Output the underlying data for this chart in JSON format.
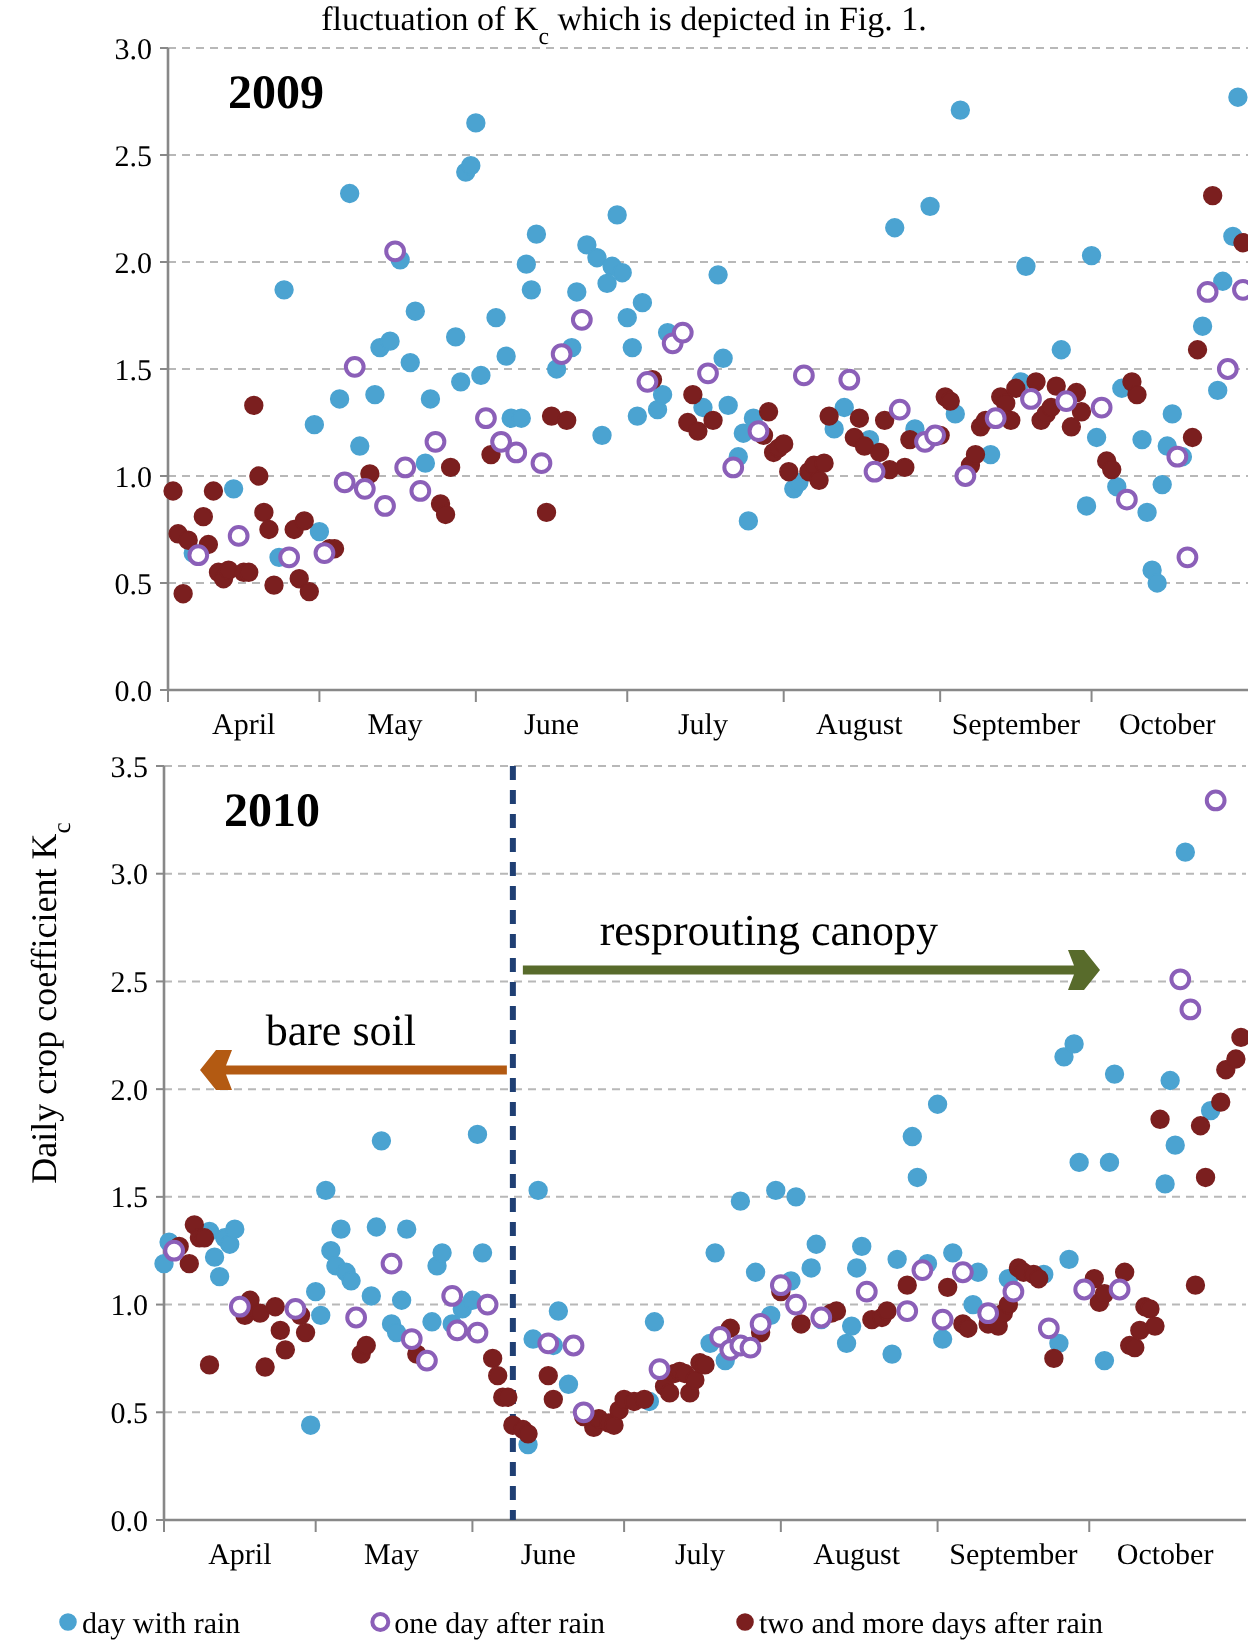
{
  "chart_data": [
    {
      "type": "scatter",
      "title": "2009",
      "annotations": [
        "fluctuation of K$_{c}$ which is depicted in Fig. 1."
      ],
      "xlim": [
        "--04-01",
        "--11-01"
      ],
      "xticks": [
        {
          "value": "--04-01",
          "label": null
        },
        {
          "value": "--04-16",
          "label": "April"
        },
        {
          "value": "--05-01",
          "label": null
        },
        {
          "value": "--05-16",
          "label": "May"
        },
        {
          "value": "--06-01",
          "label": null
        },
        {
          "value": "--06-16",
          "label": "June"
        },
        {
          "value": "--07-01",
          "label": null
        },
        {
          "value": "--07-16",
          "label": "July"
        },
        {
          "value": "--08-01",
          "label": null
        },
        {
          "value": "--08-16",
          "label": "August"
        },
        {
          "value": "--09-01",
          "label": null
        },
        {
          "value": "--09-16",
          "label": "September"
        },
        {
          "value": "--10-01",
          "label": null
        },
        {
          "value": "--10-16",
          "label": "October"
        }
      ],
      "ylim": [
        0,
        3
      ],
      "yticks": [
        {
          "value": 0,
          "label": "0.0"
        },
        {
          "value": 0.5,
          "label": "0.5"
        },
        {
          "value": 1,
          "label": "1.0"
        },
        {
          "value": 1.5,
          "label": "1.5"
        },
        {
          "value": 2,
          "label": "2.0"
        },
        {
          "value": 2.5,
          "label": "2.5"
        },
        {
          "value": 3,
          "label": "3.0"
        }
      ],
      "grid": "y",
      "marker": "circle",
      "series": [
        {
          "color": "#4ba3d1",
          "x": [
            "--04-06",
            "--04-14",
            "--04-23",
            "--04-24",
            "--04-30",
            "--05-01",
            "--05-05",
            "--05-07",
            "--05-09",
            "--05-12",
            "--05-13",
            "--05-15",
            "--05-17",
            "--05-19",
            "--05-20",
            "--05-22",
            "--05-23",
            "--05-28",
            "--05-29",
            "--05-30",
            "--05-31",
            "--06-01",
            "--06-02",
            "--06-05",
            "--06-07",
            "--06-08",
            "--06-10",
            "--06-11",
            "--06-12",
            "--06-13",
            "--06-17",
            "--06-20",
            "--06-21",
            "--06-23",
            "--06-25",
            "--06-26",
            "--06-27",
            "--06-28",
            "--06-29",
            "--06-30",
            "--07-01",
            "--07-02",
            "--07-03",
            "--07-04",
            "--07-07",
            "--07-08",
            "--07-09",
            "--07-16",
            "--07-19",
            "--07-20",
            "--07-21",
            "--07-23",
            "--07-24",
            "--07-25",
            "--07-26",
            "--08-03",
            "--08-04",
            "--08-11",
            "--08-13",
            "--08-18",
            "--08-23",
            "--08-27",
            "--08-30",
            "--09-04",
            "--09-05",
            "--09-11",
            "--09-17",
            "--09-18",
            "--09-25",
            "--09-30",
            "--10-01",
            "--10-02",
            "--10-06",
            "--10-07",
            "--10-11",
            "--10-12",
            "--10-13",
            "--10-14",
            "--10-15",
            "--10-16",
            "--10-17",
            "--10-19",
            "--10-23",
            "--10-26",
            "--10-27",
            "--10-29",
            "--10-30"
          ],
          "values": [
            0.64,
            0.94,
            0.62,
            1.87,
            1.24,
            0.74,
            1.36,
            2.32,
            1.14,
            1.38,
            1.6,
            1.63,
            2.01,
            1.53,
            1.77,
            1.06,
            1.36,
            1.65,
            1.44,
            2.42,
            2.45,
            2.65,
            1.47,
            1.74,
            1.56,
            1.27,
            1.27,
            1.99,
            1.87,
            2.13,
            1.5,
            1.6,
            1.86,
            2.08,
            2.02,
            1.19,
            1.9,
            1.98,
            2.22,
            1.95,
            1.74,
            1.6,
            1.28,
            1.81,
            1.31,
            1.38,
            1.67,
            1.32,
            1.94,
            1.55,
            1.33,
            1.09,
            1.2,
            0.79,
            1.27,
            0.94,
            0.97,
            1.22,
            1.32,
            1.17,
            2.16,
            1.22,
            2.26,
            1.29,
            2.71,
            1.1,
            1.44,
            1.98,
            1.59,
            0.86,
            2.03,
            1.18,
            0.95,
            1.41,
            1.17,
            0.83,
            0.56,
            0.5,
            0.96,
            1.14,
            1.29,
            1.09,
            1.7,
            1.4,
            1.91,
            2.12,
            2.77
          ]
        },
        {
          "color": "#8b5fb8",
          "x": [
            "--04-07",
            "--04-15",
            "--04-25",
            "--05-02",
            "--05-06",
            "--05-08",
            "--05-10",
            "--05-14",
            "--05-16",
            "--05-18",
            "--05-21",
            "--05-24",
            "--06-03",
            "--06-06",
            "--06-09",
            "--06-14",
            "--06-18",
            "--06-22",
            "--07-05",
            "--07-10",
            "--07-12",
            "--07-17",
            "--07-22",
            "--07-27",
            "--08-05",
            "--08-14",
            "--08-19",
            "--08-24",
            "--08-29",
            "--08-31",
            "--09-06",
            "--09-12",
            "--09-19",
            "--09-26",
            "--10-03",
            "--10-08",
            "--10-18",
            "--10-20",
            "--10-24",
            "--10-28",
            "--10-31"
          ],
          "values": [
            0.63,
            0.72,
            0.62,
            0.64,
            0.97,
            1.51,
            0.94,
            0.86,
            2.05,
            1.04,
            0.93,
            1.16,
            1.27,
            1.16,
            1.11,
            1.06,
            1.57,
            1.73,
            1.44,
            1.62,
            1.67,
            1.48,
            1.04,
            1.21,
            1.47,
            1.45,
            1.02,
            1.31,
            1.16,
            1.19,
            1.0,
            1.27,
            1.36,
            1.35,
            1.32,
            0.89,
            1.09,
            0.62,
            1.86,
            1.5,
            1.87
          ]
        },
        {
          "color": "#7b1f1f",
          "x": [
            "--04-02",
            "--04-03",
            "--04-04",
            "--04-05",
            "--04-08",
            "--04-09",
            "--04-10",
            "--04-11",
            "--04-12",
            "--04-13",
            "--04-16",
            "--04-17",
            "--04-18",
            "--04-19",
            "--04-20",
            "--04-21",
            "--04-22",
            "--04-26",
            "--04-27",
            "--04-28",
            "--04-29",
            "--05-03",
            "--05-04",
            "--05-11",
            "--05-25",
            "--05-26",
            "--05-27",
            "--06-04",
            "--06-15",
            "--06-16",
            "--06-19",
            "--07-06",
            "--07-13",
            "--07-14",
            "--07-15",
            "--07-18",
            "--07-28",
            "--07-29",
            "--07-30",
            "--07-31",
            "--08-01",
            "--08-02",
            "--08-06",
            "--08-07",
            "--08-08",
            "--08-09",
            "--08-10",
            "--08-15",
            "--08-16",
            "--08-17",
            "--08-20",
            "--08-21",
            "--08-22",
            "--08-25",
            "--08-26",
            "--09-01",
            "--09-02",
            "--09-03",
            "--09-07",
            "--09-08",
            "--09-09",
            "--09-10",
            "--09-13",
            "--09-14",
            "--09-15",
            "--09-16",
            "--09-20",
            "--09-21",
            "--09-22",
            "--09-23",
            "--09-24",
            "--09-27",
            "--09-28",
            "--09-29",
            "--10-04",
            "--10-05",
            "--10-09",
            "--10-10",
            "--10-21",
            "--10-22",
            "--10-25",
            "--10-31"
          ],
          "values": [
            0.93,
            0.73,
            0.45,
            0.7,
            0.81,
            0.68,
            0.93,
            0.55,
            0.52,
            0.56,
            0.55,
            0.55,
            1.33,
            1.0,
            0.83,
            0.75,
            0.49,
            0.75,
            0.52,
            0.79,
            0.46,
            0.66,
            0.66,
            1.01,
            0.87,
            0.82,
            1.04,
            1.1,
            0.83,
            1.28,
            1.26,
            1.45,
            1.25,
            1.38,
            1.21,
            1.26,
            1.19,
            1.3,
            1.11,
            1.13,
            1.15,
            1.02,
            1.02,
            1.05,
            0.98,
            1.06,
            1.28,
            1.18,
            1.27,
            1.14,
            1.11,
            1.26,
            1.03,
            1.04,
            1.17,
            1.19,
            1.37,
            1.35,
            1.05,
            1.1,
            1.23,
            1.26,
            1.37,
            1.34,
            1.26,
            1.41,
            1.44,
            1.26,
            1.29,
            1.32,
            1.42,
            1.23,
            1.39,
            1.3,
            1.07,
            1.03,
            1.44,
            1.38,
            1.18,
            1.59,
            2.31,
            2.09
          ]
        }
      ]
    },
    {
      "type": "scatter",
      "title": "2010",
      "ylabel": "Daily crop coefficient K$_{c}$",
      "annotations": [
        "bare soil",
        "resprouting canopy"
      ],
      "xlim": [
        "--04-01",
        "--11-01"
      ],
      "xticks": [
        {
          "value": "--04-01",
          "label": null
        },
        {
          "value": "--04-16",
          "label": "April"
        },
        {
          "value": "--05-01",
          "label": null
        },
        {
          "value": "--05-16",
          "label": "May"
        },
        {
          "value": "--06-01",
          "label": null
        },
        {
          "value": "--06-16",
          "label": "June"
        },
        {
          "value": "--07-01",
          "label": null
        },
        {
          "value": "--07-16",
          "label": "July"
        },
        {
          "value": "--08-01",
          "label": null
        },
        {
          "value": "--08-16",
          "label": "August"
        },
        {
          "value": "--09-01",
          "label": null
        },
        {
          "value": "--09-16",
          "label": "September"
        },
        {
          "value": "--10-01",
          "label": null
        },
        {
          "value": "--10-16",
          "label": "October"
        }
      ],
      "ylim": [
        0,
        3.5
      ],
      "yticks": [
        {
          "value": 0,
          "label": "0.0"
        },
        {
          "value": 0.5,
          "label": "0.5"
        },
        {
          "value": 1,
          "label": "1.0"
        },
        {
          "value": 1.5,
          "label": "1.5"
        },
        {
          "value": 2,
          "label": "2.0"
        },
        {
          "value": 2.5,
          "label": "2.5"
        },
        {
          "value": 3,
          "label": "3.0"
        },
        {
          "value": 3.5,
          "label": "3.5"
        }
      ],
      "grid": "y",
      "marker": "circle",
      "legend": "bottom",
      "ref_lines": [
        {
          "axis": "x",
          "value": "--06-09",
          "color": "#1f3f73",
          "line_style": "dashed"
        }
      ],
      "series": [
        {
          "name": "day with rain",
          "color": "#4ba3d1",
          "x": [
            "--04-01",
            "--04-02",
            "--04-10",
            "--04-11",
            "--04-12",
            "--04-13",
            "--04-14",
            "--04-15",
            "--04-30",
            "--05-01",
            "--05-02",
            "--05-03",
            "--05-04",
            "--05-05",
            "--05-06",
            "--05-07",
            "--05-08",
            "--05-12",
            "--05-13",
            "--05-14",
            "--05-16",
            "--05-17",
            "--05-18",
            "--05-19",
            "--05-24",
            "--05-25",
            "--05-26",
            "--05-28",
            "--05-30",
            "--06-01",
            "--06-02",
            "--06-03",
            "--06-12",
            "--06-13",
            "--06-14",
            "--06-17",
            "--06-18",
            "--06-20",
            "--07-06",
            "--07-07",
            "--07-18",
            "--07-19",
            "--07-21",
            "--07-24",
            "--07-27",
            "--07-30",
            "--07-31",
            "--08-03",
            "--08-04",
            "--08-07",
            "--08-08",
            "--08-09",
            "--08-14",
            "--08-15",
            "--08-16",
            "--08-17",
            "--08-23",
            "--08-24",
            "--08-27",
            "--08-28",
            "--08-30",
            "--09-01",
            "--09-02",
            "--09-04",
            "--09-08",
            "--09-09",
            "--09-15",
            "--09-22",
            "--09-25",
            "--09-26",
            "--09-27",
            "--09-28",
            "--09-29",
            "--10-04",
            "--10-05",
            "--10-06",
            "--10-16",
            "--10-17",
            "--10-18",
            "--10-20",
            "--10-25"
          ],
          "values": [
            1.19,
            1.29,
            1.34,
            1.22,
            1.13,
            1.31,
            1.28,
            1.35,
            0.44,
            1.06,
            0.95,
            1.53,
            1.25,
            1.18,
            1.35,
            1.15,
            1.11,
            1.04,
            1.36,
            1.76,
            0.91,
            0.87,
            1.02,
            1.35,
            0.92,
            1.18,
            1.24,
            0.91,
            0.98,
            1.02,
            1.79,
            1.24,
            0.35,
            0.84,
            1.53,
            0.81,
            0.97,
            0.63,
            0.55,
            0.92,
            0.82,
            1.24,
            0.74,
            1.48,
            1.15,
            0.95,
            1.53,
            1.11,
            1.5,
            1.17,
            1.28,
            0.93,
            0.82,
            0.9,
            1.17,
            1.27,
            0.77,
            1.21,
            1.78,
            1.59,
            1.19,
            1.93,
            0.84,
            1.24,
            1.0,
            1.15,
            1.12,
            1.14,
            0.82,
            2.15,
            1.21,
            2.21,
            1.66,
            0.74,
            1.66,
            2.07,
            1.56,
            2.04,
            1.74,
            3.1,
            1.9
          ]
        },
        {
          "name": "one day after rain",
          "color": "#8b5fb8",
          "x": [
            "--04-03",
            "--04-16",
            "--04-27",
            "--05-09",
            "--05-16",
            "--05-20",
            "--05-23",
            "--05-28",
            "--05-29",
            "--06-02",
            "--06-04",
            "--06-16",
            "--06-21",
            "--06-23",
            "--07-08",
            "--07-20",
            "--07-22",
            "--07-24",
            "--07-26",
            "--07-28",
            "--08-01",
            "--08-04",
            "--08-09",
            "--08-18",
            "--08-26",
            "--08-29",
            "--09-02",
            "--09-06",
            "--09-11",
            "--09-16",
            "--09-23",
            "--09-30",
            "--10-07",
            "--10-19",
            "--10-21",
            "--10-26"
          ],
          "values": [
            1.25,
            0.99,
            0.98,
            0.94,
            1.19,
            0.84,
            0.74,
            1.04,
            0.88,
            0.87,
            1.0,
            0.82,
            0.81,
            0.5,
            0.7,
            0.85,
            0.79,
            0.81,
            0.8,
            0.91,
            1.09,
            1.0,
            0.94,
            1.06,
            0.97,
            1.16,
            0.93,
            1.15,
            0.96,
            1.06,
            0.89,
            1.07,
            1.07,
            2.51,
            2.37,
            3.34
          ]
        },
        {
          "name": "two and more days after rain",
          "color": "#7b1f1f",
          "x": [
            "--04-04",
            "--04-06",
            "--04-07",
            "--04-08",
            "--04-09",
            "--04-10",
            "--04-17",
            "--04-18",
            "--04-20",
            "--04-21",
            "--04-23",
            "--04-24",
            "--04-25",
            "--04-28",
            "--04-29",
            "--05-10",
            "--05-11",
            "--05-21",
            "--06-05",
            "--06-06",
            "--06-07",
            "--06-08",
            "--06-09",
            "--06-11",
            "--06-12",
            "--06-16",
            "--06-17",
            "--06-23",
            "--06-25",
            "--06-26",
            "--06-28",
            "--06-29",
            "--06-30",
            "--07-01",
            "--07-03",
            "--07-05",
            "--07-09",
            "--07-10",
            "--07-11",
            "--07-12",
            "--07-13",
            "--07-14",
            "--07-15",
            "--07-16",
            "--07-17",
            "--07-22",
            "--07-28",
            "--08-01",
            "--08-05",
            "--08-11",
            "--08-12",
            "--08-19",
            "--08-21",
            "--08-22",
            "--08-26",
            "--09-03",
            "--09-06",
            "--09-07",
            "--09-11",
            "--09-13",
            "--09-14",
            "--09-15",
            "--09-17",
            "--09-18",
            "--09-20",
            "--09-21",
            "--09-24",
            "--10-02",
            "--10-03",
            "--10-04",
            "--10-08",
            "--10-09",
            "--10-10",
            "--10-11",
            "--10-12",
            "--10-13",
            "--10-14",
            "--10-15",
            "--10-22",
            "--10-23",
            "--10-24",
            "--10-27",
            "--10-28",
            "--10-30",
            "--10-31"
          ],
          "values": [
            1.27,
            1.19,
            1.37,
            1.31,
            1.31,
            0.72,
            0.95,
            1.02,
            0.96,
            0.71,
            0.99,
            0.88,
            0.79,
            0.95,
            0.87,
            0.77,
            0.81,
            0.77,
            0.75,
            0.67,
            0.57,
            0.57,
            0.44,
            0.42,
            0.4,
            0.67,
            0.56,
            0.48,
            0.43,
            0.47,
            0.45,
            0.44,
            0.51,
            0.56,
            0.55,
            0.56,
            0.62,
            0.59,
            0.68,
            0.69,
            0.68,
            0.59,
            0.65,
            0.73,
            0.72,
            0.89,
            0.87,
            1.06,
            0.91,
            0.96,
            0.97,
            0.93,
            0.94,
            0.97,
            1.09,
            1.08,
            0.91,
            0.89,
            0.91,
            0.9,
            0.96,
            1.0,
            1.17,
            1.15,
            1.14,
            1.12,
            0.75,
            1.12,
            1.01,
            1.05,
            1.15,
            0.81,
            0.8,
            0.88,
            0.99,
            0.98,
            0.9,
            1.86,
            1.09,
            1.83,
            1.59,
            1.94,
            2.09,
            2.14,
            2.24
          ]
        }
      ]
    }
  ]
}
